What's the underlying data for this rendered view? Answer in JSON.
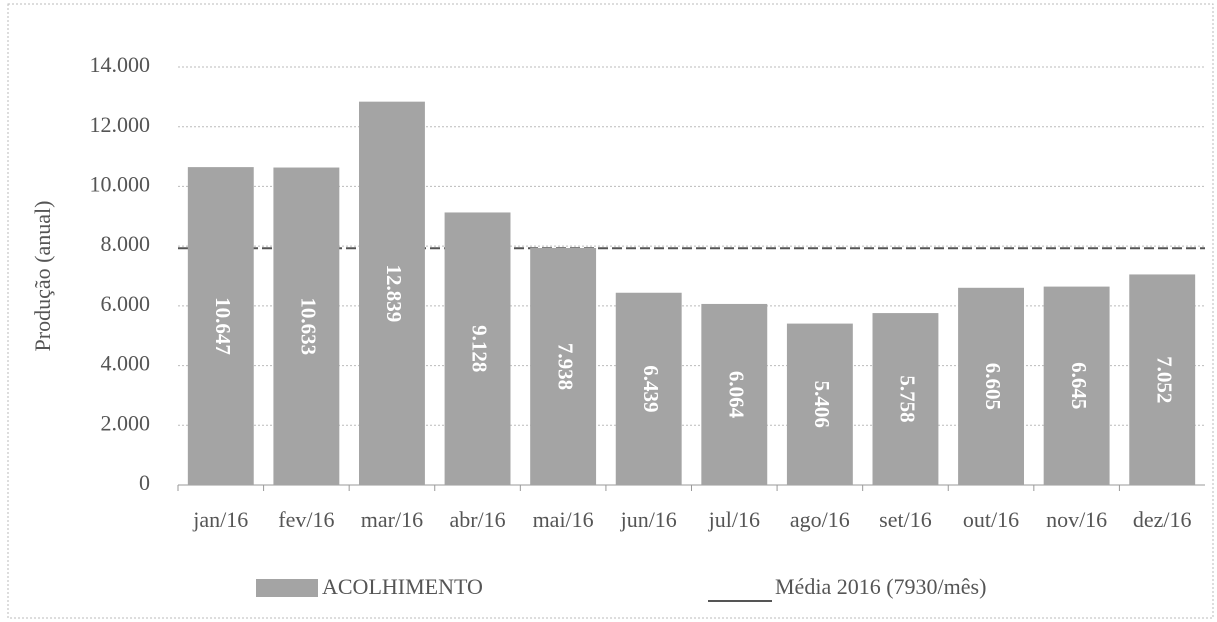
{
  "chart_data": {
    "type": "bar",
    "y_label": "Produção (anual)",
    "categories": [
      "jan/16",
      "fev/16",
      "mar/16",
      "abr/16",
      "mai/16",
      "jun/16",
      "jul/16",
      "ago/16",
      "set/16",
      "out/16",
      "nov/16",
      "dez/16"
    ],
    "series": [
      {
        "name": "ACOLHIMENTO",
        "color": "#a4a4a4",
        "values": [
          10647,
          10633,
          12839,
          9128,
          7938,
          6439,
          6064,
          5406,
          5758,
          6605,
          6645,
          7052
        ],
        "value_labels": [
          "10.647",
          "10.633",
          "12.839",
          "9.128",
          "7.938",
          "6.439",
          "6.064",
          "5.406",
          "5.758",
          "6.605",
          "6.645",
          "7.052"
        ]
      }
    ],
    "reference_line": {
      "name": "Média 2016 (7930/mês)",
      "value": 7930,
      "color": "#555555"
    },
    "ylim": [
      0,
      14000
    ],
    "yticks": [
      0,
      {
        "value": 2000,
        "label": "2.000"
      },
      {
        "value": 4000,
        "label": "4.000"
      },
      {
        "value": 6000,
        "label": "6.000"
      },
      {
        "value": 8000,
        "label": "8.000"
      },
      {
        "value": 10000,
        "label": "10.000"
      },
      {
        "value": 12000,
        "label": "12.000"
      },
      {
        "value": 14000,
        "label": "14.000"
      }
    ],
    "grid": true
  }
}
